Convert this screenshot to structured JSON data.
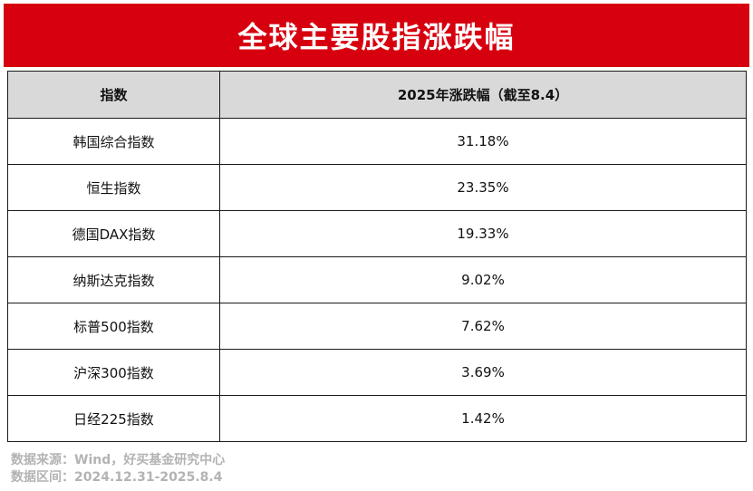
{
  "title": "全球主要股指涨跌幅",
  "table": {
    "headers": [
      "指数",
      "2025年涨跌幅（截至8.4）"
    ],
    "rows": [
      {
        "index": "韩国综合指数",
        "change": "31.18%"
      },
      {
        "index": "恒生指数",
        "change": "23.35%"
      },
      {
        "index": "德国DAX指数",
        "change": "19.33%"
      },
      {
        "index": "纳斯达克指数",
        "change": "9.02%"
      },
      {
        "index": "标普500指数",
        "change": "7.62%"
      },
      {
        "index": "沪深300指数",
        "change": "3.69%"
      },
      {
        "index": "日经225指数",
        "change": "1.42%"
      }
    ]
  },
  "footer": {
    "source": "数据来源：Wind，好买基金研究中心",
    "period": "数据区间：2024.12.31-2025.8.4"
  },
  "colors": {
    "banner": "#d7000f",
    "header_bg": "#d9d9d9",
    "footer_text": "#b3b3b3"
  }
}
